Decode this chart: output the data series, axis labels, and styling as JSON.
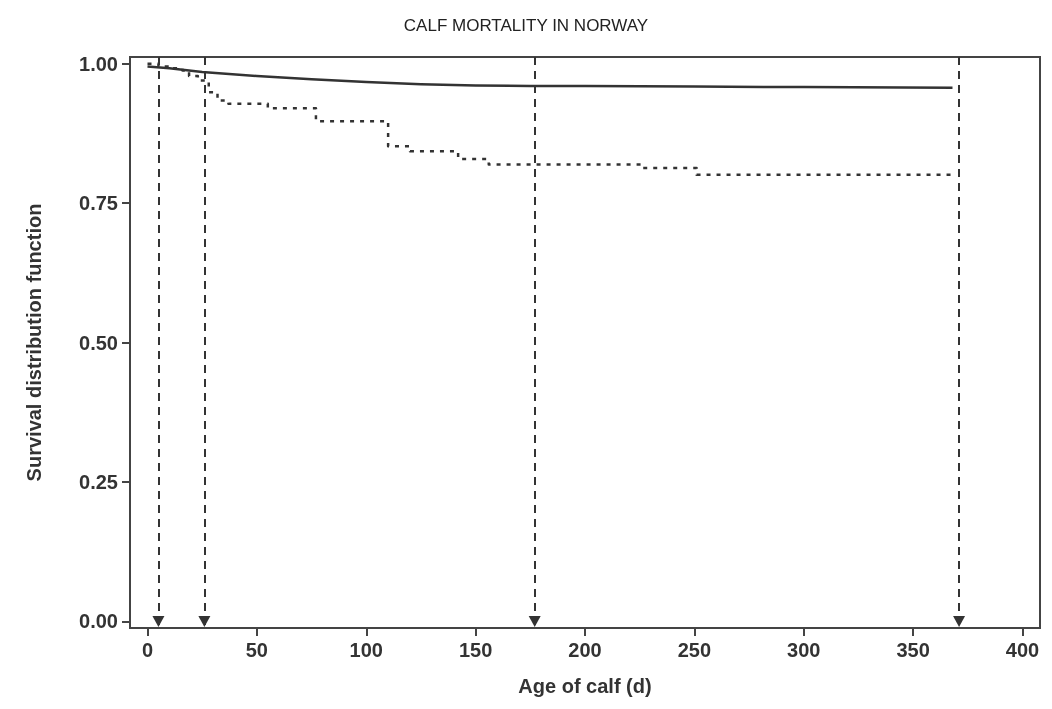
{
  "chart_data": {
    "type": "line",
    "title": "CALF MORTALITY IN NORWAY",
    "xlabel": "Age of calf (d)",
    "ylabel": "Survival distribution function",
    "series": [
      {
        "color": "#333333",
        "line_style": "solid",
        "x": [
          0,
          10,
          25,
          50,
          75,
          100,
          125,
          150,
          175,
          200,
          250,
          300,
          368
        ],
        "values": [
          0.995,
          0.992,
          0.985,
          0.978,
          0.972,
          0.967,
          0.963,
          0.961,
          0.96,
          0.96,
          0.959,
          0.958,
          0.957
        ]
      },
      {
        "type": "step",
        "color": "#333333",
        "line_style": "dotted",
        "x": [
          0,
          5,
          10,
          16,
          19,
          23,
          28,
          32,
          37,
          55,
          77,
          110,
          120,
          142,
          156,
          226,
          251,
          368
        ],
        "values": [
          1.0,
          0.995,
          0.992,
          0.988,
          0.978,
          0.97,
          0.949,
          0.934,
          0.928,
          0.92,
          0.897,
          0.852,
          0.843,
          0.829,
          0.819,
          0.813,
          0.801,
          0.801
        ]
      }
    ],
    "ref_lines": [
      {
        "axis": "x",
        "value": 5,
        "color": "#333333",
        "line_style": "dashed"
      },
      {
        "axis": "x",
        "value": 26,
        "color": "#333333",
        "line_style": "dashed"
      },
      {
        "axis": "x",
        "value": 177,
        "color": "#333333",
        "line_style": "dashed"
      },
      {
        "axis": "x",
        "value": 371,
        "color": "#333333",
        "line_style": "dashed"
      }
    ],
    "xlim": [
      -8,
      408
    ],
    "xticks": [
      0,
      50,
      100,
      150,
      200,
      250,
      300,
      350,
      400
    ],
    "ylim": [
      -0.012,
      1.012
    ],
    "yticks": [
      {
        "value": 0,
        "label": "0.00"
      },
      {
        "value": 0.25,
        "label": "0.25"
      },
      {
        "value": 0.5,
        "label": "0.50"
      },
      {
        "value": 0.75,
        "label": "0.75"
      },
      {
        "value": 1,
        "label": "1.00"
      }
    ],
    "grid": false,
    "marker": "none"
  }
}
